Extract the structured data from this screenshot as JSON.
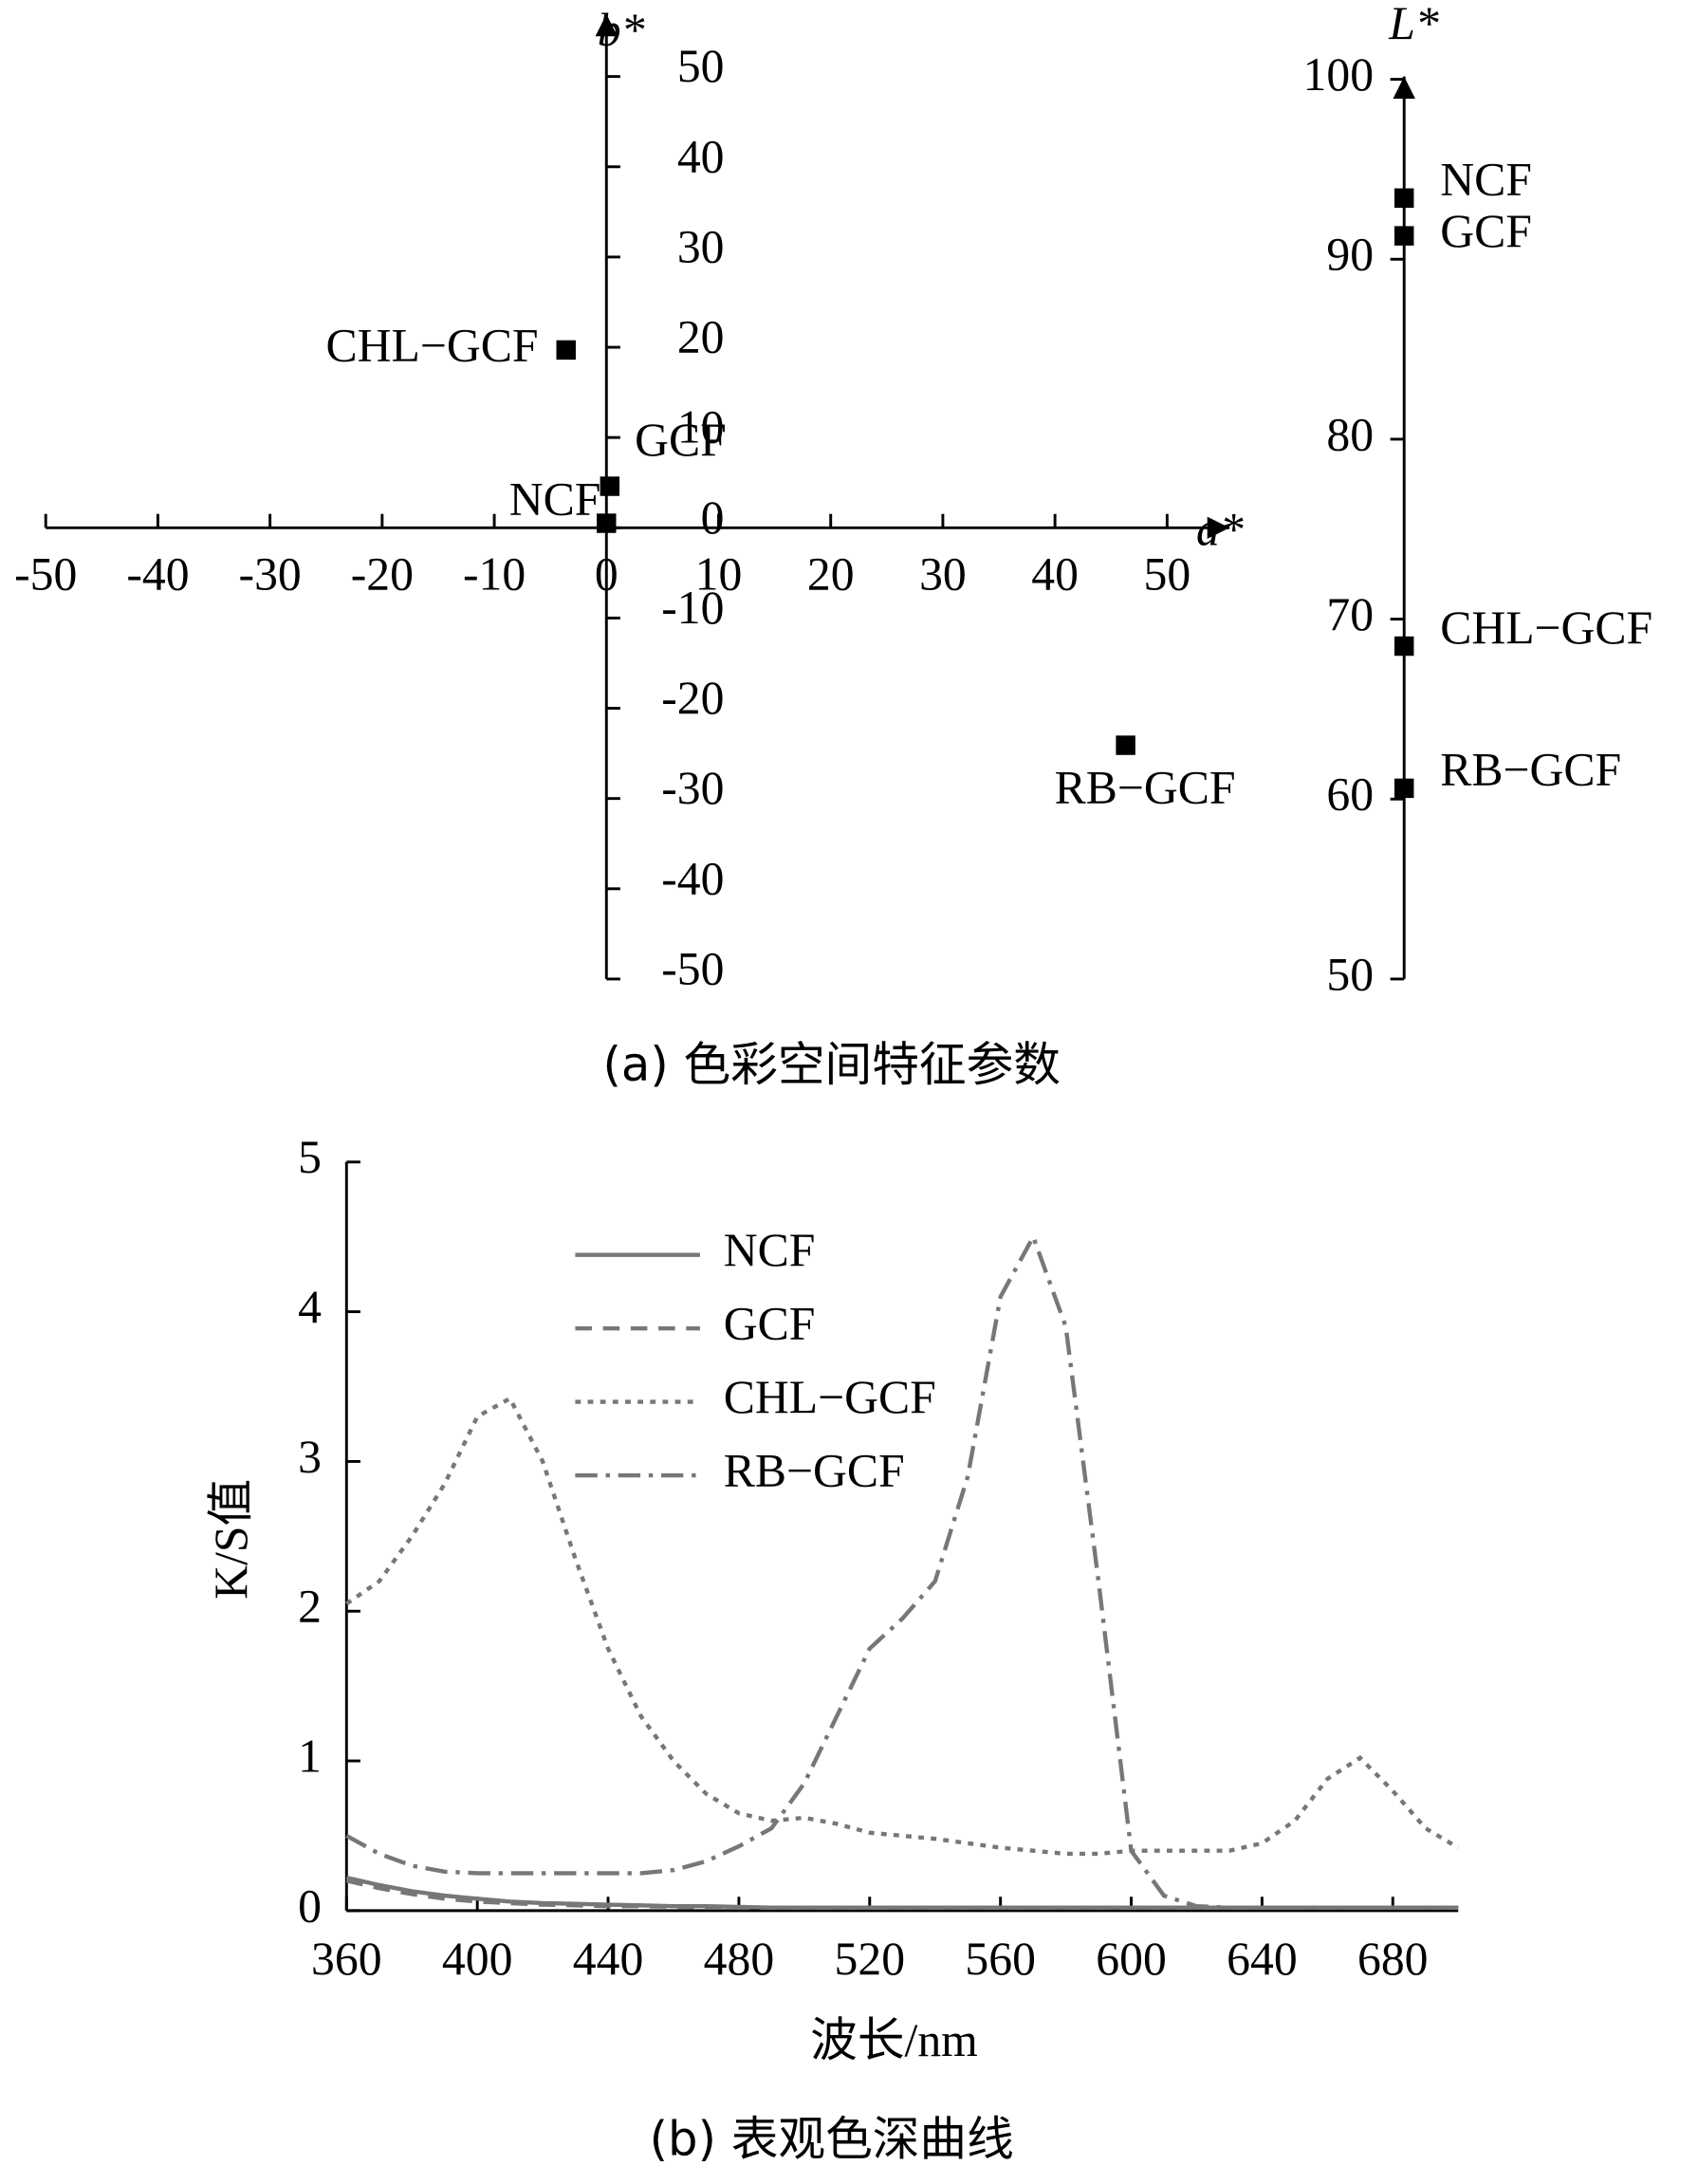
{
  "captions": [
    "(a) 色彩空间特征参数",
    "(b) 表观色深曲线"
  ],
  "chart_data": [
    {
      "type": "scatter",
      "xlabel": "a*",
      "ylabel": "b*",
      "color": "#000000",
      "xlim": [
        -50,
        50
      ],
      "ylim": [
        -50,
        50
      ],
      "xticks": [
        -50,
        -40,
        -30,
        -20,
        -10,
        0,
        10,
        20,
        30,
        40,
        50
      ],
      "yticks": [
        -50,
        -40,
        -30,
        -20,
        -10,
        0,
        10,
        20,
        30,
        40,
        50
      ],
      "points": [
        {
          "label": "NCF",
          "x": 0,
          "y": 0.5
        },
        {
          "label": "GCF",
          "x": 0.3,
          "y": 4.6
        },
        {
          "label": "CHL−GCF",
          "x": -3.6,
          "y": 19.7
        },
        {
          "label": "RB−GCF",
          "x": 46.3,
          "y": -24.1
        }
      ]
    },
    {
      "type": "strip",
      "ylabel": "L*",
      "color": "#000000",
      "ylim": [
        50,
        100
      ],
      "yticks": [
        50,
        60,
        70,
        80,
        90,
        100
      ],
      "points": [
        {
          "label": "NCF",
          "value": 93.4
        },
        {
          "label": "GCF",
          "value": 91.3
        },
        {
          "label": "CHL−GCF",
          "value": 68.5
        },
        {
          "label": "RB−GCF",
          "value": 60.6
        }
      ]
    },
    {
      "type": "line",
      "xlabel": "波长/nm",
      "ylabel": "K/S值",
      "xlim": [
        360,
        700
      ],
      "ylim": [
        0,
        5
      ],
      "xticks": [
        360,
        400,
        440,
        480,
        520,
        560,
        600,
        640,
        680
      ],
      "yticks": [
        0,
        1,
        2,
        3,
        4,
        5
      ],
      "x": [
        360,
        370,
        380,
        390,
        400,
        410,
        420,
        430,
        440,
        450,
        460,
        470,
        480,
        490,
        500,
        510,
        520,
        530,
        540,
        550,
        560,
        570,
        580,
        590,
        600,
        610,
        620,
        630,
        640,
        650,
        660,
        670,
        680,
        690,
        700
      ],
      "series": [
        {
          "name": "NCF",
          "color": "#777777",
          "dash": "none",
          "values": [
            0.22,
            0.17,
            0.13,
            0.1,
            0.08,
            0.06,
            0.05,
            0.045,
            0.04,
            0.035,
            0.03,
            0.03,
            0.025,
            0.02,
            0.02,
            0.02,
            0.02,
            0.02,
            0.02,
            0.02,
            0.02,
            0.02,
            0.02,
            0.02,
            0.02,
            0.02,
            0.02,
            0.02,
            0.02,
            0.02,
            0.02,
            0.02,
            0.02,
            0.02,
            0.02
          ]
        },
        {
          "name": "GCF",
          "color": "#777777",
          "dash": "12 8",
          "values": [
            0.2,
            0.15,
            0.11,
            0.08,
            0.06,
            0.05,
            0.04,
            0.035,
            0.03,
            0.03,
            0.025,
            0.02,
            0.02,
            0.02,
            0.02,
            0.02,
            0.02,
            0.02,
            0.02,
            0.02,
            0.02,
            0.02,
            0.02,
            0.02,
            0.02,
            0.02,
            0.02,
            0.02,
            0.02,
            0.02,
            0.02,
            0.02,
            0.02,
            0.02,
            0.02
          ]
        },
        {
          "name": "CHL−GCF",
          "color": "#777777",
          "dash": "4 5",
          "values": [
            2.05,
            2.2,
            2.5,
            2.85,
            3.3,
            3.42,
            3.0,
            2.35,
            1.75,
            1.3,
            1.0,
            0.78,
            0.65,
            0.6,
            0.62,
            0.58,
            0.52,
            0.5,
            0.48,
            0.45,
            0.42,
            0.4,
            0.38,
            0.38,
            0.4,
            0.4,
            0.4,
            0.4,
            0.45,
            0.6,
            0.88,
            1.02,
            0.8,
            0.55,
            0.42
          ]
        },
        {
          "name": "RB−GCF",
          "color": "#777777",
          "dash": "16 6 3 6",
          "values": [
            0.5,
            0.38,
            0.3,
            0.26,
            0.25,
            0.25,
            0.25,
            0.25,
            0.25,
            0.25,
            0.27,
            0.33,
            0.43,
            0.55,
            0.85,
            1.3,
            1.75,
            1.95,
            2.2,
            2.9,
            4.1,
            4.5,
            3.9,
            2.2,
            0.4,
            0.1,
            0.03,
            0.02,
            0.02,
            0.02,
            0.02,
            0.02,
            0.02,
            0.02,
            0.02
          ]
        }
      ]
    }
  ]
}
